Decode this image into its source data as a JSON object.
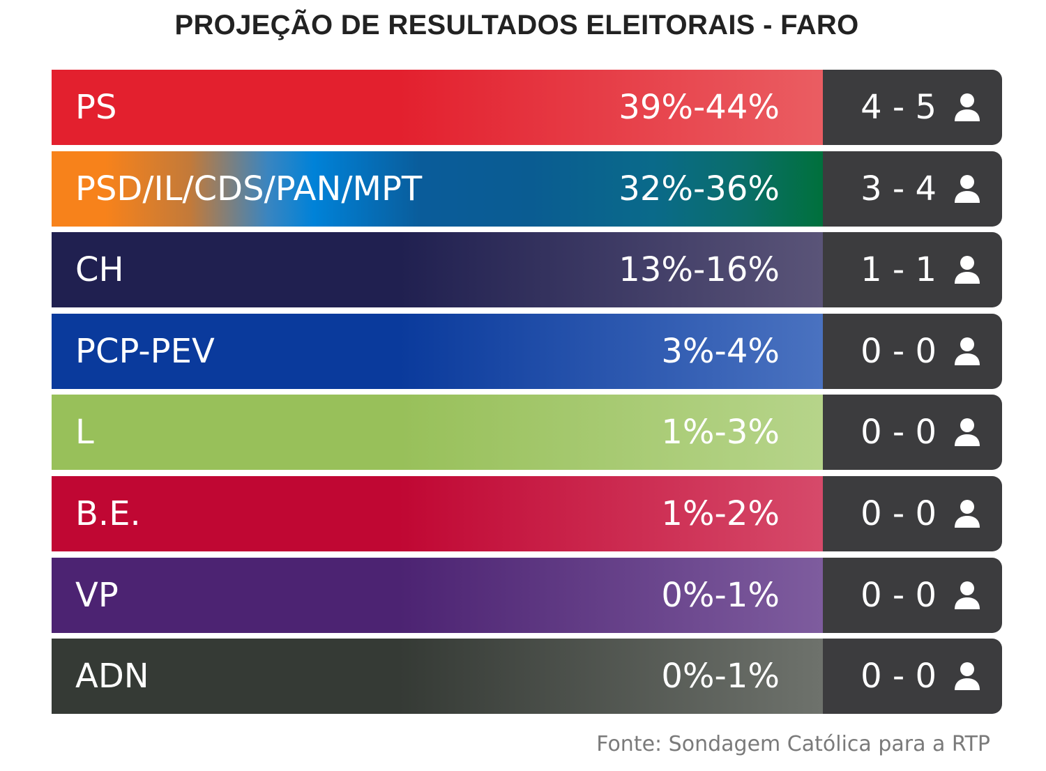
{
  "chart_data": {
    "type": "table",
    "title": "PROJEÇÃO DE RESULTADOS ELEITORAIS - FARO",
    "source": "Fonte: Sondagem Católica para a RTP",
    "rows": [
      {
        "party": "PS",
        "percent": "39%-44%",
        "seats": "4 - 5",
        "color_start": "#e3202e",
        "color_end": "#ea5d62",
        "gradient": "solid"
      },
      {
        "party": "PSD/IL/CDS/PAN/MPT",
        "percent": "32%-36%",
        "seats": "3 - 4",
        "color_start": "#f7821b",
        "color_end": "#00703c",
        "gradient": "multi"
      },
      {
        "party": "CH",
        "percent": "13%-16%",
        "seats": "1 - 1",
        "color_start": "#202050",
        "color_end": "#5a5478",
        "gradient": "solid"
      },
      {
        "party": "PCP-PEV",
        "percent": "3%-4%",
        "seats": "0 - 0",
        "color_start": "#0a3a9c",
        "color_end": "#4a72c0",
        "gradient": "solid"
      },
      {
        "party": "L",
        "percent": "1%-3%",
        "seats": "0 - 0",
        "color_start": "#98c05a",
        "color_end": "#b6d48a",
        "gradient": "solid"
      },
      {
        "party": "B.E.",
        "percent": "1%-2%",
        "seats": "0 - 0",
        "color_start": "#c00733",
        "color_end": "#d64a6a",
        "gradient": "solid"
      },
      {
        "party": "VP",
        "percent": "0%-1%",
        "seats": "0 - 0",
        "color_start": "#4c2372",
        "color_end": "#7e5c9e",
        "gradient": "solid"
      },
      {
        "party": "ADN",
        "percent": "0%-1%",
        "seats": "0 - 0",
        "color_start": "#353a35",
        "color_end": "#6e726c",
        "gradient": "solid"
      }
    ]
  },
  "colors": {
    "seat_box": "#3c3c3e",
    "title_text": "#222222",
    "source_text": "#7a7a7a"
  },
  "icons": {
    "seat_icon": "person-icon"
  }
}
